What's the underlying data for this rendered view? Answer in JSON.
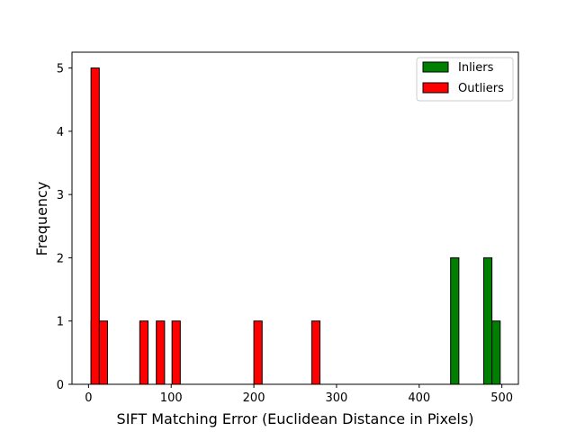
{
  "chart_data": {
    "type": "bar",
    "subtype": "histogram",
    "xlabel": "SIFT Matching Error (Euclidean Distance in Pixels)",
    "ylabel": "Frequency",
    "xlim": [
      -20,
      520
    ],
    "ylim": [
      0,
      5.25
    ],
    "xticks": [
      0,
      100,
      200,
      300,
      400,
      500
    ],
    "yticks": [
      0,
      1,
      2,
      3,
      4,
      5
    ],
    "bin_width": 10,
    "grid": false,
    "legend_position": "top-right",
    "series": [
      {
        "name": "Inliers",
        "color": "#008000",
        "bins": [
          {
            "x_start": 3,
            "count": 1
          },
          {
            "x_start": 438,
            "count": 2
          },
          {
            "x_start": 478,
            "count": 2
          },
          {
            "x_start": 488,
            "count": 1
          }
        ]
      },
      {
        "name": "Outliers",
        "color": "#ff0000",
        "bins": [
          {
            "x_start": 3,
            "count": 5
          },
          {
            "x_start": 13,
            "count": 1
          },
          {
            "x_start": 62,
            "count": 1
          },
          {
            "x_start": 82,
            "count": 1
          },
          {
            "x_start": 101,
            "count": 1
          },
          {
            "x_start": 200,
            "count": 1
          },
          {
            "x_start": 270,
            "count": 1
          }
        ]
      }
    ]
  }
}
